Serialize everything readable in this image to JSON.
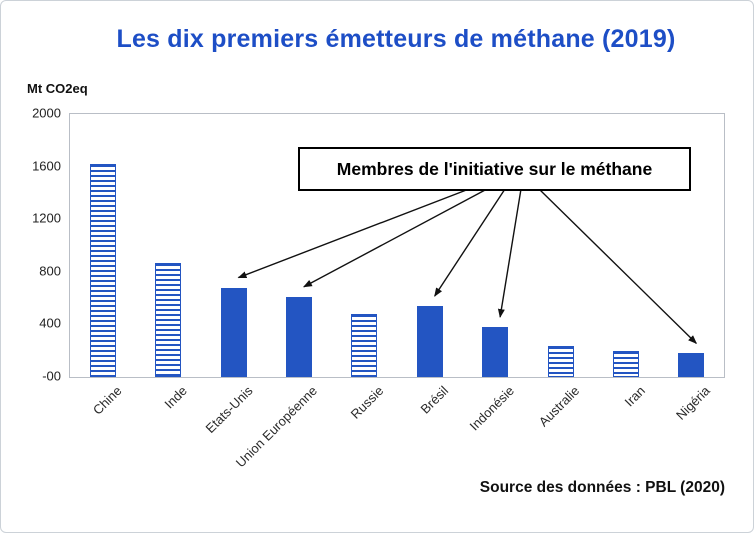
{
  "chart_data": {
    "type": "bar",
    "title": "Les dix premiers émetteurs de méthane (2019)",
    "ylabel": "Mt CO2eq",
    "xlabel": "",
    "ylim": [
      0,
      2000
    ],
    "yticks": [
      2000,
      1600,
      1200,
      800,
      400,
      0
    ],
    "ytick_labels": [
      "2000",
      "1600",
      "1200",
      "800",
      "400",
      "-00"
    ],
    "categories": [
      "Chine",
      "Inde",
      "Etats-Unis",
      "Union Européenne",
      "Russie",
      "Brésil",
      "Indonésie",
      "Australie",
      "Iran",
      "Nigéria"
    ],
    "values": [
      1620,
      870,
      680,
      610,
      480,
      540,
      380,
      235,
      195,
      180
    ],
    "bar_styles": [
      "hatched",
      "hatched",
      "solid",
      "solid",
      "hatched",
      "solid",
      "solid",
      "hatched",
      "hatched",
      "solid"
    ],
    "members_of_initiative": [
      "Etats-Unis",
      "Union Européenne",
      "Brésil",
      "Indonésie",
      "Nigéria"
    ],
    "annotation": "Membres de l'initiative sur le méthane",
    "source": "Source des données : PBL (2020)",
    "grid": false,
    "legend": "none",
    "colors": {
      "bar": "#2355c2",
      "title": "#1d4ec6",
      "axis_border": "#b9bec6",
      "arrow": "#111111"
    }
  }
}
